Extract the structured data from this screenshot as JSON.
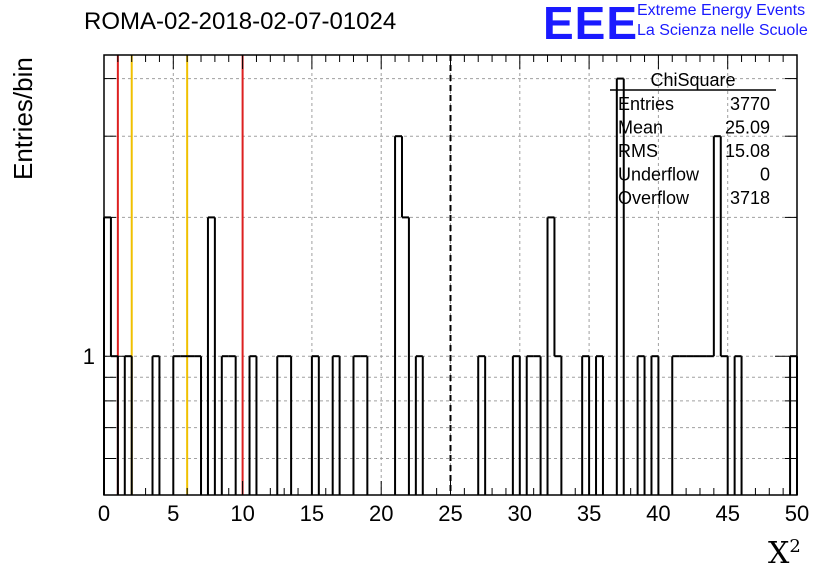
{
  "header": {
    "title": "ROMA-02-2018-02-07-01024",
    "logo_text": "EEE",
    "logo_line1": "Extreme Energy Events",
    "logo_line2": "La Scienza nelle Scuole"
  },
  "colors": {
    "red_line": "#dd2020",
    "yellow_line": "#f0c000",
    "logo": "#1a1aff",
    "grid": "#a0a0a0"
  },
  "stats": {
    "title": "ChiSquare",
    "rows": [
      {
        "label": "Entries",
        "value": "3770"
      },
      {
        "label": "Mean",
        "value": "25.09"
      },
      {
        "label": "RMS",
        "value": "15.08"
      },
      {
        "label": "Underflow",
        "value": "0"
      },
      {
        "label": "Overflow",
        "value": "3718"
      }
    ]
  },
  "chart_data": {
    "type": "histogram",
    "ylabel": "Entries/bin",
    "xlabel_base": "X",
    "xlabel_sup": "2",
    "xlim": [
      0,
      50
    ],
    "ylim": [
      0.5,
      4.5
    ],
    "ylog": true,
    "grid": true,
    "bin_width": 0.5,
    "xticks": [
      "0",
      "5",
      "10",
      "15",
      "20",
      "25",
      "30",
      "35",
      "40",
      "45",
      "50"
    ],
    "yticks": [
      "1"
    ],
    "bins": [
      {
        "x": 0.0,
        "y": 2
      },
      {
        "x": 0.5,
        "y": 1
      },
      {
        "x": 1.5,
        "y": 1
      },
      {
        "x": 3.5,
        "y": 1
      },
      {
        "x": 5.0,
        "y": 1
      },
      {
        "x": 5.5,
        "y": 1
      },
      {
        "x": 6.0,
        "y": 1
      },
      {
        "x": 6.5,
        "y": 1
      },
      {
        "x": 7.5,
        "y": 2
      },
      {
        "x": 8.5,
        "y": 1
      },
      {
        "x": 9.0,
        "y": 1
      },
      {
        "x": 10.5,
        "y": 1
      },
      {
        "x": 12.5,
        "y": 1
      },
      {
        "x": 13.0,
        "y": 1
      },
      {
        "x": 15.0,
        "y": 1
      },
      {
        "x": 16.5,
        "y": 1
      },
      {
        "x": 18.0,
        "y": 1
      },
      {
        "x": 18.5,
        "y": 1
      },
      {
        "x": 21.0,
        "y": 3
      },
      {
        "x": 21.5,
        "y": 2
      },
      {
        "x": 22.5,
        "y": 1
      },
      {
        "x": 27.0,
        "y": 1
      },
      {
        "x": 29.5,
        "y": 1
      },
      {
        "x": 30.5,
        "y": 1
      },
      {
        "x": 31.0,
        "y": 1
      },
      {
        "x": 32.0,
        "y": 2
      },
      {
        "x": 32.5,
        "y": 1
      },
      {
        "x": 34.5,
        "y": 1
      },
      {
        "x": 35.5,
        "y": 1
      },
      {
        "x": 37.0,
        "y": 4
      },
      {
        "x": 38.5,
        "y": 1
      },
      {
        "x": 39.5,
        "y": 1
      },
      {
        "x": 41.0,
        "y": 1
      },
      {
        "x": 41.5,
        "y": 1
      },
      {
        "x": 42.0,
        "y": 1
      },
      {
        "x": 42.5,
        "y": 1
      },
      {
        "x": 43.0,
        "y": 1
      },
      {
        "x": 43.5,
        "y": 1
      },
      {
        "x": 44.0,
        "y": 3
      },
      {
        "x": 44.5,
        "y": 1
      },
      {
        "x": 45.5,
        "y": 1
      },
      {
        "x": 49.5,
        "y": 1
      }
    ],
    "vlines": [
      {
        "x": 1,
        "color": "red",
        "style": "solid"
      },
      {
        "x": 2,
        "color": "yellow",
        "style": "solid"
      },
      {
        "x": 6,
        "color": "yellow",
        "style": "solid"
      },
      {
        "x": 10,
        "color": "red",
        "style": "solid"
      },
      {
        "x": 25,
        "color": "black",
        "style": "dashed"
      }
    ]
  }
}
